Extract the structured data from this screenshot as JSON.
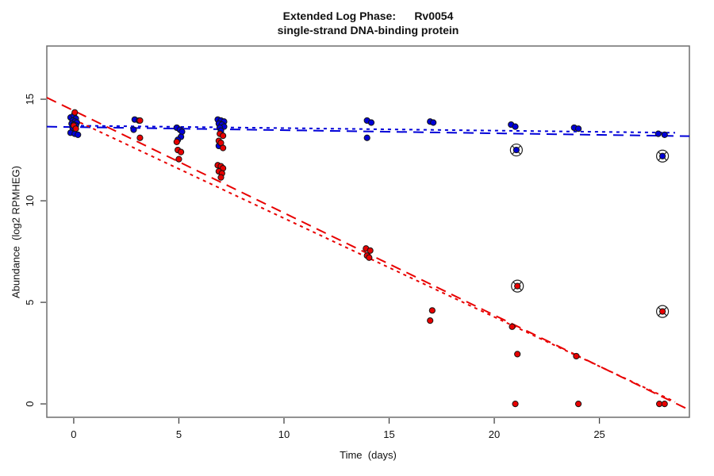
{
  "chart_data": {
    "type": "scatter",
    "title_line1": "Extended Log Phase:      Rv0054",
    "title_line2": "single-strand DNA-binding protein",
    "xlabel": "Time  (days)",
    "ylabel": "Abundance  (log2 RPMHEG)",
    "xlim": [
      -1.28,
      29.28
    ],
    "ylim": [
      -0.66,
      17.62
    ],
    "xticks": [
      0,
      5,
      10,
      15,
      20,
      25
    ],
    "yticks": [
      0,
      5,
      10,
      15
    ],
    "grid": false,
    "legend": "none",
    "colors": {
      "blue_points": "#0000D8",
      "red_points": "#E80000",
      "point_outline": "#151515",
      "axis_box": "#6e6e6e",
      "tick": "#444444",
      "text": "#111111"
    },
    "series": [
      {
        "name": "condition-blue",
        "color_key": "blue_points",
        "points": [
          [
            -0.15,
            14.1
          ],
          [
            0,
            14.2
          ],
          [
            0.1,
            14.05
          ],
          [
            -0.05,
            13.95
          ],
          [
            0.05,
            13.9
          ],
          [
            0.15,
            13.85
          ],
          [
            -0.1,
            13.8
          ],
          [
            0,
            13.75
          ],
          [
            0.1,
            13.7
          ],
          [
            -0.05,
            13.6
          ],
          [
            -0.15,
            13.35
          ],
          [
            0.05,
            13.3
          ],
          [
            0.2,
            13.25
          ],
          [
            2.9,
            14.0
          ],
          [
            3.1,
            13.95
          ],
          [
            2.85,
            13.5
          ],
          [
            4.9,
            13.6
          ],
          [
            5.05,
            13.5
          ],
          [
            5.15,
            13.4
          ],
          [
            5.1,
            13.15
          ],
          [
            4.95,
            13.0
          ],
          [
            6.85,
            14.0
          ],
          [
            7.0,
            13.95
          ],
          [
            7.15,
            13.9
          ],
          [
            6.9,
            13.8
          ],
          [
            7.05,
            13.75
          ],
          [
            7.15,
            13.65
          ],
          [
            6.95,
            13.6
          ],
          [
            7.0,
            13.45
          ],
          [
            6.9,
            12.7
          ],
          [
            13.95,
            13.95
          ],
          [
            14.15,
            13.85
          ],
          [
            13.95,
            13.1
          ],
          [
            16.95,
            13.9
          ],
          [
            17.1,
            13.85
          ],
          [
            20.8,
            13.75
          ],
          [
            21.0,
            13.65
          ],
          [
            23.8,
            13.6
          ],
          [
            24.0,
            13.55
          ],
          [
            27.8,
            13.3
          ],
          [
            28.1,
            13.25
          ]
        ]
      },
      {
        "name": "condition-red",
        "color_key": "red_points",
        "points": [
          [
            0.05,
            14.35
          ],
          [
            0.0,
            13.7
          ],
          [
            0.1,
            13.55
          ],
          [
            3.15,
            13.95
          ],
          [
            3.15,
            13.1
          ],
          [
            4.9,
            12.9
          ],
          [
            4.95,
            12.5
          ],
          [
            5.1,
            12.4
          ],
          [
            5.0,
            12.05
          ],
          [
            6.95,
            13.3
          ],
          [
            7.1,
            13.2
          ],
          [
            6.9,
            12.95
          ],
          [
            7.0,
            12.85
          ],
          [
            7.1,
            12.6
          ],
          [
            6.85,
            11.75
          ],
          [
            7.0,
            11.7
          ],
          [
            7.1,
            11.6
          ],
          [
            6.9,
            11.45
          ],
          [
            7.05,
            11.35
          ],
          [
            7.0,
            11.15
          ],
          [
            13.9,
            7.65
          ],
          [
            14.1,
            7.55
          ],
          [
            13.95,
            7.3
          ],
          [
            14.05,
            7.2
          ],
          [
            17.05,
            4.6
          ],
          [
            16.95,
            4.1
          ],
          [
            20.85,
            3.8
          ],
          [
            21.1,
            2.45
          ],
          [
            21.0,
            0.0
          ],
          [
            23.9,
            2.35
          ],
          [
            24.0,
            0.0
          ],
          [
            27.85,
            0.0
          ],
          [
            28.1,
            0.0
          ]
        ]
      }
    ],
    "circled_outliers": [
      {
        "series": "condition-blue",
        "color_key": "blue_points",
        "x": 21.05,
        "y": 12.5
      },
      {
        "series": "condition-blue",
        "color_key": "blue_points",
        "x": 28.0,
        "y": 12.2
      },
      {
        "series": "condition-red",
        "color_key": "red_points",
        "x": 21.1,
        "y": 5.8
      },
      {
        "series": "condition-red",
        "color_key": "red_points",
        "x": 28.0,
        "y": 4.55
      }
    ],
    "trend_lines": [
      {
        "name": "blue-longdash-fit",
        "color_key": "blue_points",
        "style": "longdash",
        "x1": -1.28,
        "y1": 13.65,
        "x2": 29.28,
        "y2": 13.18
      },
      {
        "name": "blue-dotted-fit",
        "color_key": "blue_points",
        "style": "dotted",
        "x1": 0.0,
        "y1": 13.7,
        "x2": 28.6,
        "y2": 13.35
      },
      {
        "name": "red-longdash-fit",
        "color_key": "red_points",
        "style": "longdash",
        "x1": -1.28,
        "y1": 15.08,
        "x2": 29.28,
        "y2": -0.3
      },
      {
        "name": "red-dotted-fit",
        "color_key": "red_points",
        "style": "dotted",
        "x1": 0.0,
        "y1": 14.0,
        "x2": 28.6,
        "y2": 0.1
      }
    ]
  }
}
